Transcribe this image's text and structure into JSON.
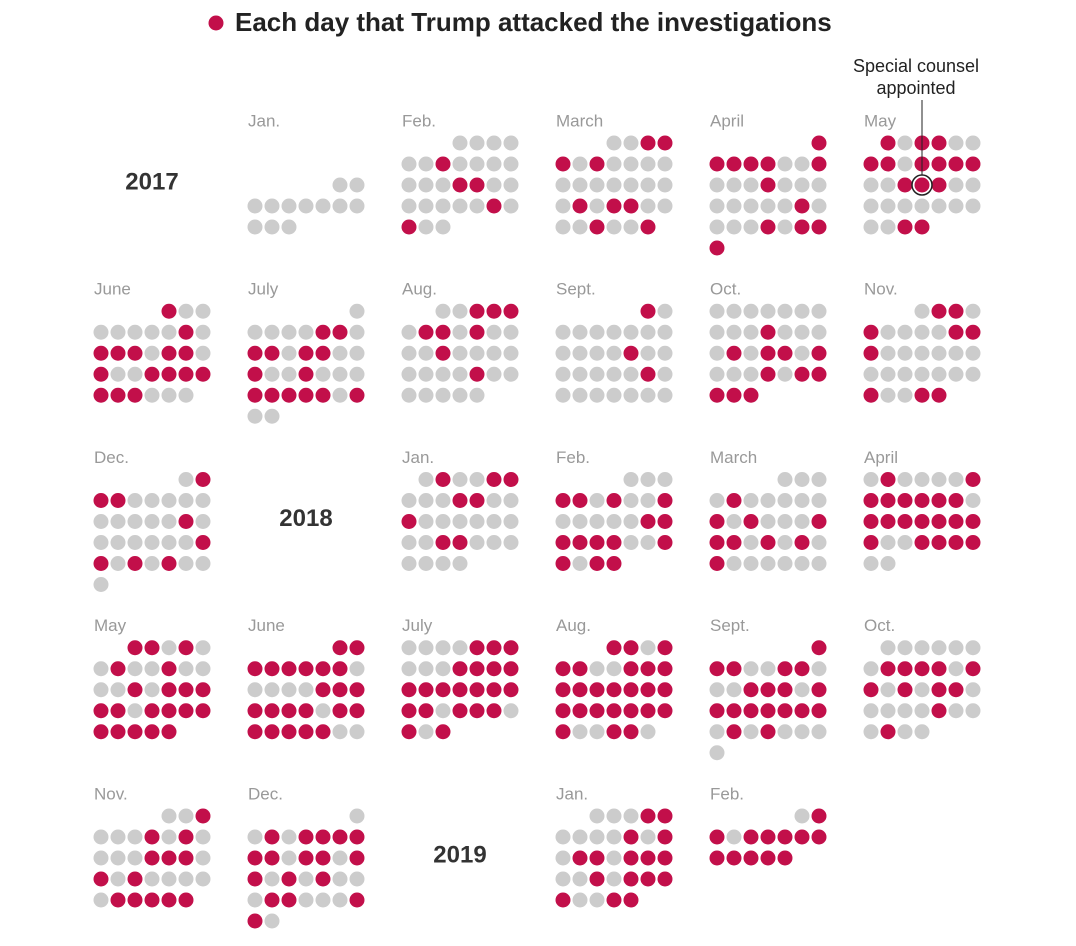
{
  "chart_data": {
    "type": "calendar",
    "title": "Each day that Trump attacked the investigations",
    "color": "#c20f4a",
    "empty_color": "#cccccc",
    "years": [
      "2017",
      "2018",
      "2019"
    ],
    "annotation": {
      "month": 4,
      "day_index": 16,
      "lines": [
        "Special counsel",
        "appointed"
      ]
    },
    "months": [
      {
        "label": "Jan.",
        "values": [
          0,
          0,
          0,
          0,
          0,
          0,
          0,
          0,
          0,
          0,
          0,
          0
        ]
      },
      {
        "label": "Feb.",
        "values": [
          0,
          0,
          0,
          0,
          0,
          0,
          1,
          0,
          0,
          0,
          0,
          0,
          0,
          0,
          1,
          1,
          0,
          0,
          0,
          0,
          0,
          0,
          0,
          1,
          0,
          1,
          0,
          0
        ]
      },
      {
        "label": "March",
        "values": [
          0,
          0,
          1,
          1,
          1,
          0,
          1,
          0,
          0,
          0,
          0,
          0,
          0,
          0,
          0,
          0,
          0,
          0,
          0,
          1,
          0,
          1,
          1,
          0,
          0,
          0,
          0,
          1,
          0,
          0,
          1
        ]
      },
      {
        "label": "April",
        "values": [
          1,
          1,
          1,
          1,
          1,
          0,
          0,
          1,
          0,
          0,
          0,
          1,
          0,
          0,
          0,
          0,
          0,
          0,
          0,
          0,
          1,
          0,
          0,
          0,
          0,
          1,
          0,
          1,
          1,
          1
        ]
      },
      {
        "label": "May",
        "values": [
          1,
          0,
          1,
          1,
          0,
          0,
          1,
          1,
          0,
          1,
          1,
          1,
          1,
          0,
          0,
          1,
          1,
          1,
          0,
          0,
          0,
          0,
          0,
          0,
          0,
          0,
          0,
          0,
          0,
          1,
          1
        ]
      },
      {
        "label": "June",
        "values": [
          1,
          0,
          0,
          0,
          0,
          0,
          0,
          0,
          1,
          0,
          1,
          1,
          1,
          0,
          1,
          1,
          0,
          1,
          0,
          0,
          1,
          1,
          1,
          1,
          1,
          1,
          1,
          0,
          0,
          0
        ]
      },
      {
        "label": "July",
        "values": [
          0,
          0,
          0,
          0,
          0,
          1,
          1,
          0,
          1,
          1,
          0,
          1,
          1,
          0,
          0,
          1,
          0,
          0,
          1,
          0,
          0,
          0,
          1,
          1,
          1,
          1,
          1,
          0,
          1,
          0,
          0
        ]
      },
      {
        "label": "Aug.",
        "values": [
          0,
          0,
          1,
          1,
          1,
          0,
          1,
          1,
          0,
          1,
          0,
          0,
          0,
          0,
          1,
          0,
          0,
          0,
          0,
          0,
          0,
          0,
          0,
          1,
          0,
          0,
          0,
          0,
          0,
          0,
          0
        ]
      },
      {
        "label": "Sept.",
        "values": [
          1,
          0,
          0,
          0,
          0,
          0,
          0,
          0,
          0,
          0,
          0,
          0,
          0,
          1,
          0,
          0,
          0,
          0,
          0,
          0,
          0,
          1,
          0,
          0,
          0,
          0,
          0,
          0,
          0,
          0
        ]
      },
      {
        "label": "Oct.",
        "values": [
          0,
          0,
          0,
          0,
          0,
          0,
          0,
          0,
          0,
          0,
          1,
          0,
          0,
          0,
          0,
          1,
          0,
          1,
          1,
          0,
          1,
          0,
          0,
          0,
          1,
          0,
          1,
          1,
          1,
          1,
          1
        ]
      },
      {
        "label": "Nov.",
        "values": [
          0,
          1,
          1,
          0,
          1,
          0,
          0,
          0,
          0,
          1,
          1,
          1,
          0,
          0,
          0,
          0,
          0,
          0,
          0,
          0,
          0,
          0,
          0,
          0,
          0,
          1,
          0,
          0,
          1,
          1
        ]
      },
      {
        "label": "Dec.",
        "values": [
          0,
          1,
          1,
          1,
          0,
          0,
          0,
          0,
          0,
          0,
          0,
          0,
          0,
          0,
          1,
          0,
          0,
          0,
          0,
          0,
          0,
          0,
          1,
          1,
          0,
          1,
          0,
          1,
          0,
          0,
          0
        ]
      },
      {
        "label": "Jan.",
        "values": [
          0,
          1,
          0,
          0,
          1,
          1,
          0,
          0,
          0,
          1,
          1,
          0,
          0,
          1,
          0,
          0,
          0,
          0,
          0,
          0,
          0,
          0,
          1,
          1,
          0,
          0,
          0,
          0,
          0,
          0,
          0
        ]
      },
      {
        "label": "Feb.",
        "values": [
          0,
          0,
          0,
          1,
          1,
          0,
          1,
          0,
          0,
          1,
          0,
          0,
          0,
          0,
          0,
          1,
          1,
          1,
          1,
          1,
          1,
          0,
          0,
          1,
          1,
          0,
          1,
          1
        ]
      },
      {
        "label": "March",
        "values": [
          0,
          0,
          0,
          0,
          1,
          0,
          0,
          0,
          0,
          0,
          1,
          0,
          1,
          0,
          0,
          0,
          1,
          1,
          1,
          0,
          1,
          0,
          1,
          0,
          1,
          0,
          0,
          0,
          0,
          0,
          0
        ]
      },
      {
        "label": "April",
        "values": [
          0,
          1,
          0,
          0,
          0,
          0,
          1,
          1,
          1,
          1,
          1,
          1,
          1,
          0,
          1,
          1,
          1,
          1,
          1,
          1,
          1,
          1,
          0,
          0,
          1,
          1,
          1,
          1,
          0,
          0
        ]
      },
      {
        "label": "May",
        "values": [
          1,
          1,
          0,
          1,
          0,
          0,
          1,
          0,
          0,
          1,
          0,
          0,
          0,
          0,
          1,
          0,
          1,
          1,
          1,
          1,
          1,
          0,
          1,
          1,
          1,
          1,
          1,
          1,
          1,
          1,
          1
        ]
      },
      {
        "label": "June",
        "values": [
          1,
          1,
          1,
          1,
          1,
          1,
          1,
          1,
          0,
          0,
          0,
          0,
          0,
          1,
          1,
          1,
          1,
          1,
          1,
          1,
          0,
          1,
          1,
          1,
          1,
          1,
          1,
          1,
          0,
          0
        ]
      },
      {
        "label": "July",
        "values": [
          0,
          0,
          0,
          0,
          1,
          1,
          1,
          0,
          0,
          0,
          1,
          1,
          1,
          1,
          1,
          1,
          1,
          1,
          1,
          1,
          1,
          1,
          1,
          0,
          1,
          1,
          1,
          0,
          1,
          0,
          1
        ]
      },
      {
        "label": "Aug.",
        "values": [
          1,
          1,
          0,
          1,
          1,
          1,
          0,
          0,
          1,
          1,
          1,
          1,
          1,
          1,
          1,
          1,
          1,
          1,
          1,
          1,
          1,
          1,
          1,
          1,
          1,
          1,
          0,
          0,
          1,
          1,
          0
        ]
      },
      {
        "label": "Sept.",
        "values": [
          1,
          1,
          1,
          0,
          0,
          1,
          1,
          0,
          0,
          0,
          1,
          1,
          1,
          0,
          1,
          1,
          1,
          1,
          1,
          1,
          1,
          1,
          0,
          1,
          0,
          1,
          0,
          0,
          0,
          0
        ]
      },
      {
        "label": "Oct.",
        "values": [
          0,
          0,
          0,
          0,
          0,
          0,
          0,
          1,
          1,
          1,
          1,
          0,
          1,
          1,
          0,
          1,
          0,
          1,
          1,
          0,
          0,
          0,
          0,
          0,
          1,
          0,
          0,
          0,
          1,
          0,
          0
        ]
      },
      {
        "label": "Nov.",
        "values": [
          0,
          0,
          1,
          0,
          0,
          0,
          1,
          0,
          1,
          0,
          0,
          0,
          0,
          1,
          1,
          1,
          0,
          1,
          0,
          1,
          0,
          0,
          0,
          0,
          0,
          1,
          1,
          1,
          1,
          1
        ]
      },
      {
        "label": "Dec.",
        "values": [
          0,
          0,
          1,
          0,
          1,
          1,
          1,
          1,
          1,
          1,
          0,
          1,
          1,
          0,
          1,
          1,
          0,
          1,
          0,
          1,
          0,
          0,
          0,
          1,
          1,
          0,
          0,
          0,
          1,
          1,
          0
        ]
      },
      {
        "label": "Jan.",
        "values": [
          0,
          0,
          0,
          1,
          1,
          0,
          0,
          0,
          0,
          1,
          0,
          1,
          0,
          1,
          1,
          0,
          1,
          1,
          1,
          0,
          0,
          1,
          0,
          1,
          1,
          1,
          1,
          0,
          0,
          1,
          1
        ]
      },
      {
        "label": "Feb.",
        "values": [
          0,
          1,
          1,
          0,
          1,
          1,
          1,
          1,
          1,
          1,
          1,
          1,
          1,
          1
        ]
      }
    ]
  }
}
